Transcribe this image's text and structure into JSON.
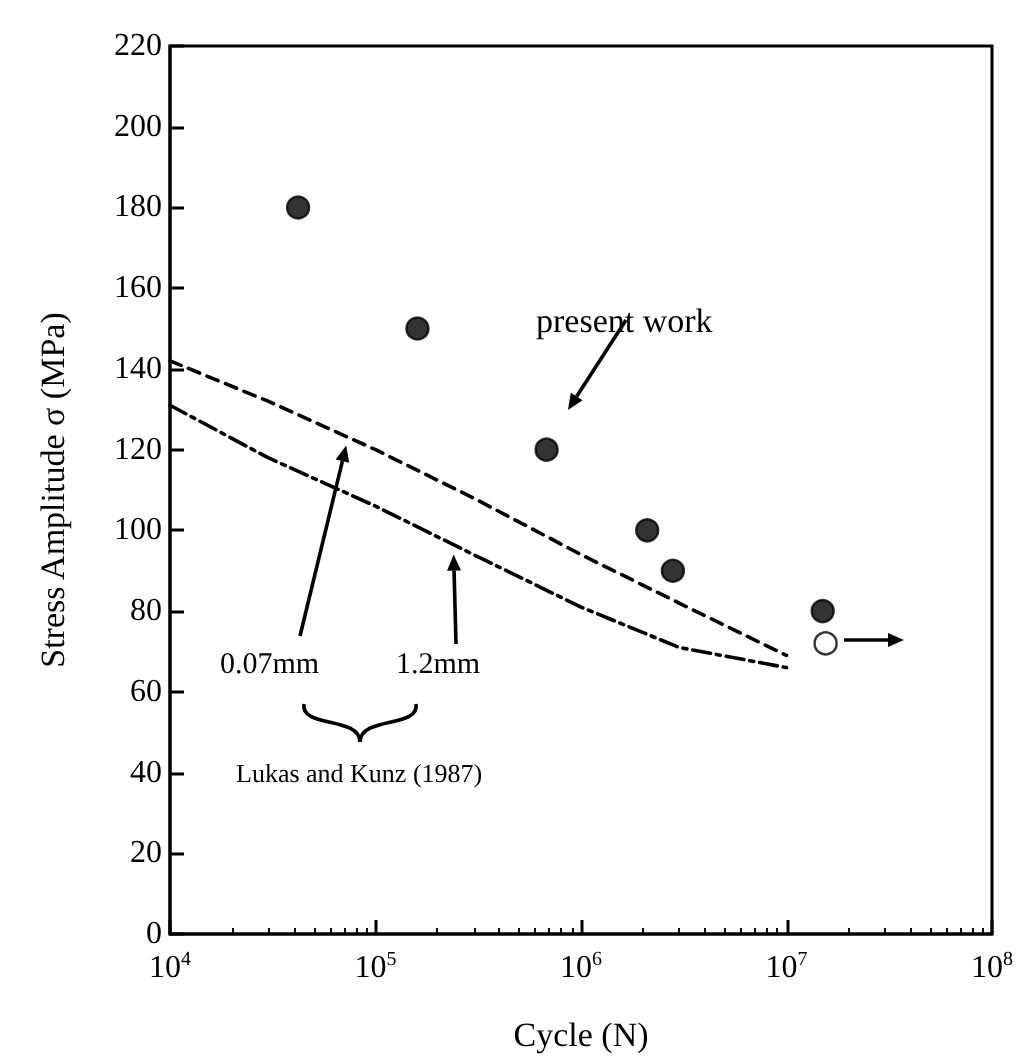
{
  "chart_data": {
    "type": "scatter",
    "xlabel": "Cycle (N)",
    "ylabel": "Stress Amplitude σ (MPa)",
    "log": "x",
    "xlim": [
      10000,
      100000000
    ],
    "ylim": [
      0,
      220
    ],
    "xticks": [
      {
        "value": 10000,
        "label": "10$^{4}$"
      },
      {
        "value": 100000,
        "label": "10$^{5}$"
      },
      {
        "value": 1000000,
        "label": "10$^{6}$"
      },
      {
        "value": 10000000,
        "label": "10$^{7}$"
      },
      {
        "value": 100000000,
        "label": "10$^{8}$"
      }
    ],
    "yticks": [
      0,
      20,
      40,
      60,
      80,
      100,
      120,
      140,
      160,
      180,
      200,
      220
    ],
    "grid": false,
    "series": [
      {
        "marker": "circle",
        "color": "#000000",
        "x": [
          42000,
          160000,
          680000,
          2100000,
          2800000,
          15000000
        ],
        "values": [
          180,
          150,
          120,
          100,
          90,
          80
        ]
      },
      {
        "marker": "circle",
        "color": "#ffffff",
        "x": [
          15500000
        ],
        "values": [
          72
        ]
      },
      {
        "type": "line",
        "marker": "none",
        "line_style": "dashed",
        "color": "#000000",
        "x": [
          10000,
          30000,
          100000,
          300000,
          1000000,
          3000000,
          10000000
        ],
        "values": [
          142,
          132,
          120,
          108,
          94,
          82,
          69
        ]
      },
      {
        "type": "line",
        "marker": "none",
        "line_style": "dashdot",
        "color": "#000000",
        "x": [
          10000,
          30000,
          100000,
          300000,
          1000000,
          3000000,
          10000000
        ],
        "values": [
          131,
          118,
          106,
          94,
          81,
          71,
          66
        ]
      }
    ],
    "annotations": [
      "present work",
      {
        "text": "0.07mm",
        "x": 72000,
        "y": 121
      },
      {
        "text": "1.2mm",
        "x": 240000,
        "y": 94
      },
      "Lukas and Kunz (1987)"
    ]
  }
}
